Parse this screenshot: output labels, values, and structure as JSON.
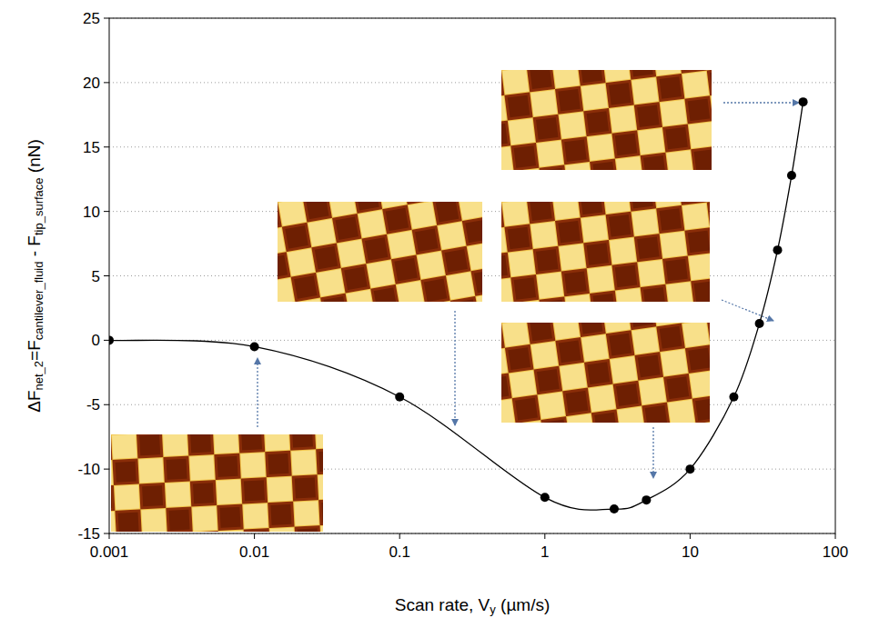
{
  "chart_data": {
    "type": "line",
    "x_label": [
      "Scan rate, V",
      "y",
      " (µm/s)"
    ],
    "y_label": [
      "ΔF",
      "net_2",
      "=F",
      "cantilever_fluid",
      " - F",
      "tip_surface",
      " (nN)"
    ],
    "x": [
      0.001,
      0.01,
      0.1,
      1,
      3,
      5,
      10,
      20,
      30,
      40,
      50,
      60
    ],
    "values": [
      0,
      -0.5,
      -4.4,
      -12.2,
      -13.1,
      -12.4,
      -10,
      -4.4,
      1.3,
      7,
      12.8,
      18.5
    ],
    "color": "#000000",
    "marker": "circle",
    "line_style": "solid",
    "log": "x",
    "xlim": [
      0.001,
      100
    ],
    "ylim": [
      -15,
      25
    ],
    "xticks": [
      0.001,
      0.01,
      0.1,
      1,
      10,
      100
    ],
    "yticks": [
      -15,
      -10,
      -5,
      0,
      5,
      10,
      15,
      20,
      25
    ],
    "grid": true
  }
}
